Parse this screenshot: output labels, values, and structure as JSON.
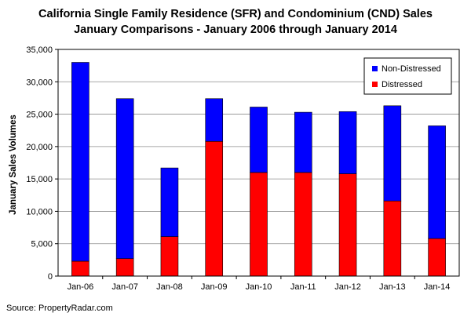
{
  "chart_data": {
    "type": "bar",
    "stacked": true,
    "title_lines": [
      "California Single Family Residence (SFR) and Condominium (CND) Sales",
      "January Comparisons - January 2006 through January 2014"
    ],
    "xlabel": "",
    "ylabel": "January Sales Volumes",
    "ylim": [
      0,
      35000
    ],
    "y_ticks": [
      "0",
      "5,000",
      "10,000",
      "15,000",
      "20,000",
      "25,000",
      "30,000",
      "35,000"
    ],
    "y_tick_values": [
      0,
      5000,
      10000,
      15000,
      20000,
      25000,
      30000,
      35000
    ],
    "grid": true,
    "legend_position": "top-right",
    "categories": [
      "Jan-06",
      "Jan-07",
      "Jan-08",
      "Jan-09",
      "Jan-10",
      "Jan-11",
      "Jan-12",
      "Jan-13",
      "Jan-14"
    ],
    "series": [
      {
        "name": "Distressed",
        "color": "#ff0000",
        "values": [
          2300,
          2700,
          6100,
          20800,
          16000,
          16000,
          15800,
          11600,
          5800
        ]
      },
      {
        "name": "Non-Distressed",
        "color": "#0000ff",
        "values": [
          30700,
          24700,
          10600,
          6600,
          10100,
          9300,
          9600,
          14700,
          17400
        ]
      }
    ],
    "legend_order": [
      "Non-Distressed",
      "Distressed"
    ]
  },
  "source": "Source: PropertyRadar.com"
}
